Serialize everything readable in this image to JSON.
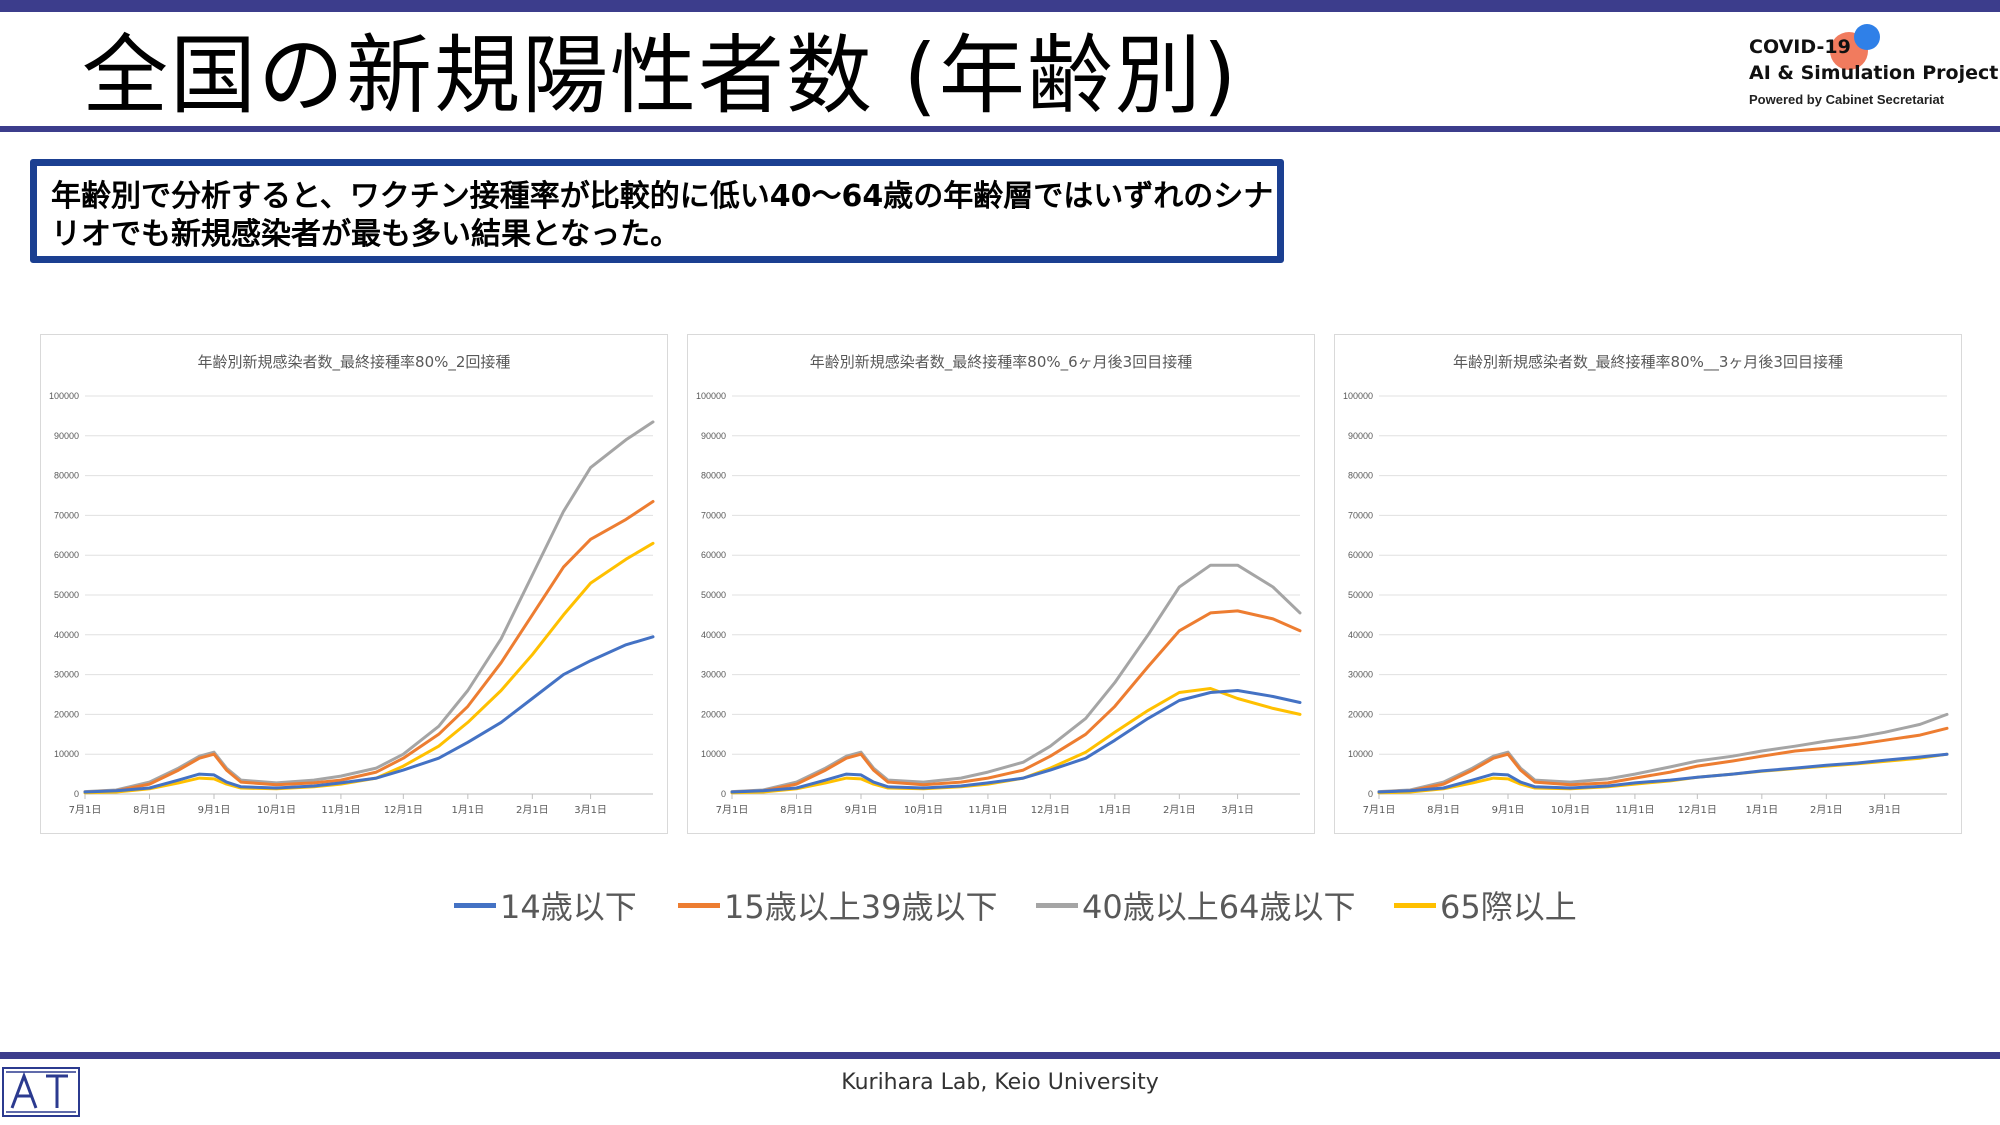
{
  "title": "全国の新規陽性者数 (年齢別)",
  "logo": {
    "line1": "COVID-19",
    "line2": "AI & Simulation Project",
    "line3": "Powered by Cabinet Secretariat"
  },
  "summary": "年齢別で分析すると、ワクチン接種率が比較的に低い40〜64歳の年齢層ではいずれのシナリオでも新規感染者が最も多い結果となった。",
  "footer": "Kurihara Lab, Keio University",
  "legend": [
    {
      "label": "14歳以下",
      "color": "#4472c4"
    },
    {
      "label": "15歳以上39歳以下",
      "color": "#ed7d31"
    },
    {
      "label": "40歳以上64歳以下",
      "color": "#a5a5a5"
    },
    {
      "label": "65際以上",
      "color": "#ffc000"
    }
  ],
  "chart_data": [
    {
      "type": "line",
      "title": "年齢別新規感染者数_最終接種率80%_2回接種",
      "ylim": [
        0,
        100000
      ],
      "yticks": [
        0,
        10000,
        20000,
        30000,
        40000,
        50000,
        60000,
        70000,
        80000,
        90000,
        100000
      ],
      "xticks": [
        "7月1日",
        "8月1日",
        "9月1日",
        "10月1日",
        "11月1日",
        "12月1日",
        "1月1日",
        "2月1日",
        "3月1日"
      ],
      "xtick_days": [
        0,
        31,
        62,
        92,
        123,
        153,
        184,
        215,
        243
      ],
      "x_days": [
        0,
        15,
        31,
        45,
        55,
        62,
        68,
        75,
        92,
        110,
        123,
        140,
        153,
        170,
        184,
        200,
        215,
        230,
        243,
        260,
        273
      ],
      "grid": true,
      "series": [
        {
          "name": "14歳以下",
          "color": "#4472c4",
          "values": [
            500,
            800,
            1500,
            3500,
            5000,
            4800,
            3000,
            1800,
            1500,
            2000,
            2800,
            4000,
            6000,
            9000,
            13000,
            18000,
            24000,
            30000,
            33500,
            37500,
            39500
          ]
        },
        {
          "name": "15歳以上39歳以下",
          "color": "#ed7d31",
          "values": [
            500,
            800,
            2500,
            6000,
            9000,
            10000,
            6000,
            3000,
            2300,
            2800,
            3500,
            5500,
            9000,
            15000,
            22000,
            33000,
            45000,
            57000,
            64000,
            69000,
            73500
          ]
        },
        {
          "name": "40歳以上64歳以下",
          "color": "#a5a5a5",
          "values": [
            600,
            1000,
            3000,
            6500,
            9500,
            10500,
            6500,
            3500,
            2800,
            3500,
            4500,
            6500,
            10000,
            17000,
            26000,
            39000,
            55000,
            71000,
            82000,
            89000,
            93500
          ]
        },
        {
          "name": "65際以上",
          "color": "#ffc000",
          "values": [
            300,
            500,
            1300,
            2800,
            4000,
            3800,
            2500,
            1500,
            1300,
            1800,
            2500,
            4000,
            7000,
            12000,
            18000,
            26000,
            35000,
            45000,
            53000,
            59000,
            63000
          ]
        }
      ]
    },
    {
      "type": "line",
      "title": "年齢別新規感染者数_最終接種率80%_6ヶ月後3回目接種",
      "ylim": [
        0,
        100000
      ],
      "yticks": [
        0,
        10000,
        20000,
        30000,
        40000,
        50000,
        60000,
        70000,
        80000,
        90000,
        100000
      ],
      "xticks": [
        "7月1日",
        "8月1日",
        "9月1日",
        "10月1日",
        "11月1日",
        "12月1日",
        "1月1日",
        "2月1日",
        "3月1日"
      ],
      "xtick_days": [
        0,
        31,
        62,
        92,
        123,
        153,
        184,
        215,
        243
      ],
      "x_days": [
        0,
        15,
        31,
        45,
        55,
        62,
        68,
        75,
        92,
        110,
        123,
        140,
        153,
        170,
        184,
        200,
        215,
        230,
        243,
        260,
        273
      ],
      "grid": true,
      "series": [
        {
          "name": "14歳以下",
          "color": "#4472c4",
          "values": [
            500,
            800,
            1500,
            3500,
            5000,
            4800,
            3000,
            1800,
            1500,
            2000,
            2800,
            4000,
            6000,
            9000,
            13500,
            19000,
            23500,
            25500,
            26000,
            24500,
            23000
          ]
        },
        {
          "name": "15歳以上39歳以下",
          "color": "#ed7d31",
          "values": [
            500,
            800,
            2500,
            6000,
            9000,
            10000,
            6000,
            3000,
            2300,
            3000,
            4000,
            6000,
            9500,
            15000,
            22000,
            32000,
            41000,
            45500,
            46000,
            44000,
            41000
          ]
        },
        {
          "name": "40歳以上64歳以下",
          "color": "#a5a5a5",
          "values": [
            600,
            1000,
            3000,
            6500,
            9500,
            10500,
            6500,
            3500,
            3000,
            4000,
            5500,
            8000,
            12000,
            19000,
            28000,
            40000,
            52000,
            57500,
            57500,
            52000,
            45500
          ]
        },
        {
          "name": "65際以上",
          "color": "#ffc000",
          "values": [
            300,
            500,
            1300,
            2800,
            4000,
            3800,
            2500,
            1500,
            1300,
            1800,
            2500,
            4000,
            6500,
            10500,
            15500,
            21000,
            25500,
            26500,
            24000,
            21500,
            20000
          ]
        }
      ]
    },
    {
      "type": "line",
      "title": "年齢別新規感染者数_最終接種率80%__3ヶ月後3回目接種",
      "ylim": [
        0,
        100000
      ],
      "yticks": [
        0,
        10000,
        20000,
        30000,
        40000,
        50000,
        60000,
        70000,
        80000,
        90000,
        100000
      ],
      "xticks": [
        "7月1日",
        "8月1日",
        "9月1日",
        "10月1日",
        "11月1日",
        "12月1日",
        "1月1日",
        "2月1日",
        "3月1日"
      ],
      "xtick_days": [
        0,
        31,
        62,
        92,
        123,
        153,
        184,
        215,
        243
      ],
      "x_days": [
        0,
        15,
        31,
        45,
        55,
        62,
        68,
        75,
        92,
        110,
        123,
        140,
        153,
        170,
        184,
        200,
        215,
        230,
        243,
        260,
        273
      ],
      "grid": true,
      "series": [
        {
          "name": "14歳以下",
          "color": "#4472c4",
          "values": [
            500,
            800,
            1500,
            3500,
            5000,
            4800,
            3000,
            1800,
            1500,
            2000,
            2800,
            3500,
            4200,
            5000,
            5800,
            6500,
            7200,
            7800,
            8500,
            9300,
            10000
          ]
        },
        {
          "name": "15歳以上39歳以下",
          "color": "#ed7d31",
          "values": [
            500,
            800,
            2500,
            6000,
            9000,
            10000,
            6000,
            3000,
            2300,
            2800,
            4000,
            5500,
            7000,
            8300,
            9500,
            10800,
            11500,
            12500,
            13500,
            14800,
            16500
          ]
        },
        {
          "name": "40歳以上64歳以下",
          "color": "#a5a5a5",
          "values": [
            600,
            1000,
            3000,
            6500,
            9500,
            10500,
            6500,
            3500,
            3000,
            3800,
            5000,
            6800,
            8300,
            9500,
            10800,
            12000,
            13300,
            14300,
            15500,
            17500,
            20000
          ]
        },
        {
          "name": "65際以上",
          "color": "#ffc000",
          "values": [
            300,
            500,
            1300,
            2800,
            4000,
            3800,
            2500,
            1500,
            1300,
            1800,
            2500,
            3300,
            4200,
            5000,
            5700,
            6400,
            7000,
            7600,
            8200,
            9000,
            10000
          ]
        }
      ]
    }
  ]
}
